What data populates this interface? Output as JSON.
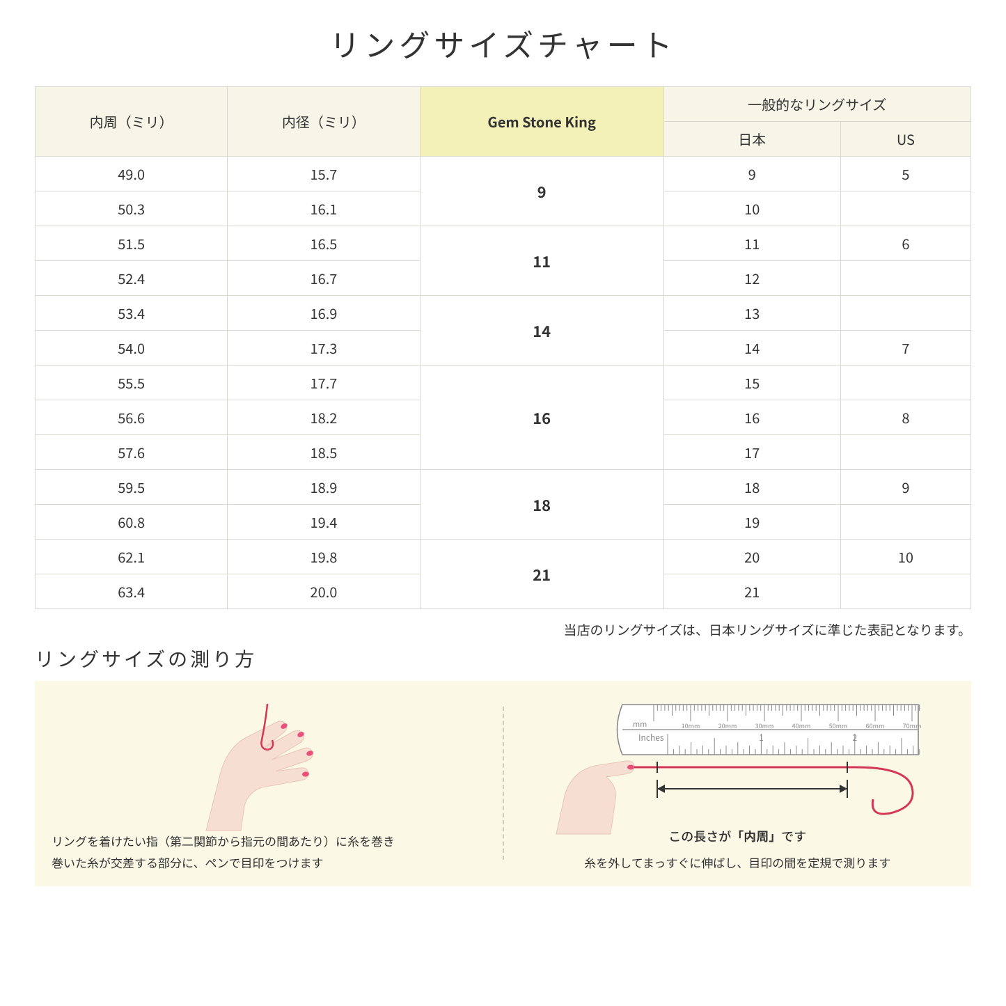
{
  "title": "リングサイズチャート",
  "headers": {
    "circumference": "内周（ミリ）",
    "diameter": "内径（ミリ）",
    "gsk": "Gem Stone King",
    "general": "一般的なリングサイズ",
    "japan": "日本",
    "us": "US"
  },
  "groups": [
    {
      "gsk": "9",
      "rows": [
        {
          "c": "49.0",
          "d": "15.7",
          "jp": "9",
          "us": "5"
        },
        {
          "c": "50.3",
          "d": "16.1",
          "jp": "10",
          "us": ""
        }
      ]
    },
    {
      "gsk": "11",
      "rows": [
        {
          "c": "51.5",
          "d": "16.5",
          "jp": "11",
          "us": "6"
        },
        {
          "c": "52.4",
          "d": "16.7",
          "jp": "12",
          "us": ""
        }
      ]
    },
    {
      "gsk": "14",
      "rows": [
        {
          "c": "53.4",
          "d": "16.9",
          "jp": "13",
          "us": ""
        },
        {
          "c": "54.0",
          "d": "17.3",
          "jp": "14",
          "us": "7"
        }
      ]
    },
    {
      "gsk": "16",
      "rows": [
        {
          "c": "55.5",
          "d": "17.7",
          "jp": "15",
          "us": ""
        },
        {
          "c": "56.6",
          "d": "18.2",
          "jp": "16",
          "us": "8"
        },
        {
          "c": "57.6",
          "d": "18.5",
          "jp": "17",
          "us": ""
        }
      ]
    },
    {
      "gsk": "18",
      "rows": [
        {
          "c": "59.5",
          "d": "18.9",
          "jp": "18",
          "us": "9"
        },
        {
          "c": "60.8",
          "d": "19.4",
          "jp": "19",
          "us": ""
        }
      ]
    },
    {
      "gsk": "21",
      "rows": [
        {
          "c": "62.1",
          "d": "19.8",
          "jp": "20",
          "us": "10"
        },
        {
          "c": "63.4",
          "d": "20.0",
          "jp": "21",
          "us": ""
        }
      ]
    }
  ],
  "note": "当店のリングサイズは、日本リングサイズに準じた表記となります。",
  "subtitle": "リングサイズの測り方",
  "left_instruction_line1": "リングを着けたい指（第二関節から指元の間あたり）に糸を巻き",
  "left_instruction_line2": "巻いた糸が交差する部分に、ペンで目印をつけます",
  "right_label_prefix": "この長さが",
  "right_label_bold": "「内周」",
  "right_label_suffix": "です",
  "right_instruction": "糸を外してまっすぐに伸ばし、目印の間を定規で測ります",
  "ruler": {
    "mm_label": "mm",
    "inches_label": "Inches",
    "mm_ticks": [
      "10mm",
      "20mm",
      "30mm",
      "40mm",
      "50mm",
      "60mm",
      "70mm"
    ],
    "inch_major": [
      "1",
      "2"
    ]
  },
  "colors": {
    "header_bg": "#f7f5e8",
    "highlight_bg": "#f3f0b8",
    "border": "#d8d8d0",
    "panel_bg": "#fbf8e6",
    "skin": "#f6ded2",
    "skin_shadow": "#e9c5b8",
    "nail": "#e8527a",
    "thread": "#d43756",
    "ruler_fill": "#ffffff",
    "ruler_stroke": "#888888",
    "arrow": "#333333"
  }
}
